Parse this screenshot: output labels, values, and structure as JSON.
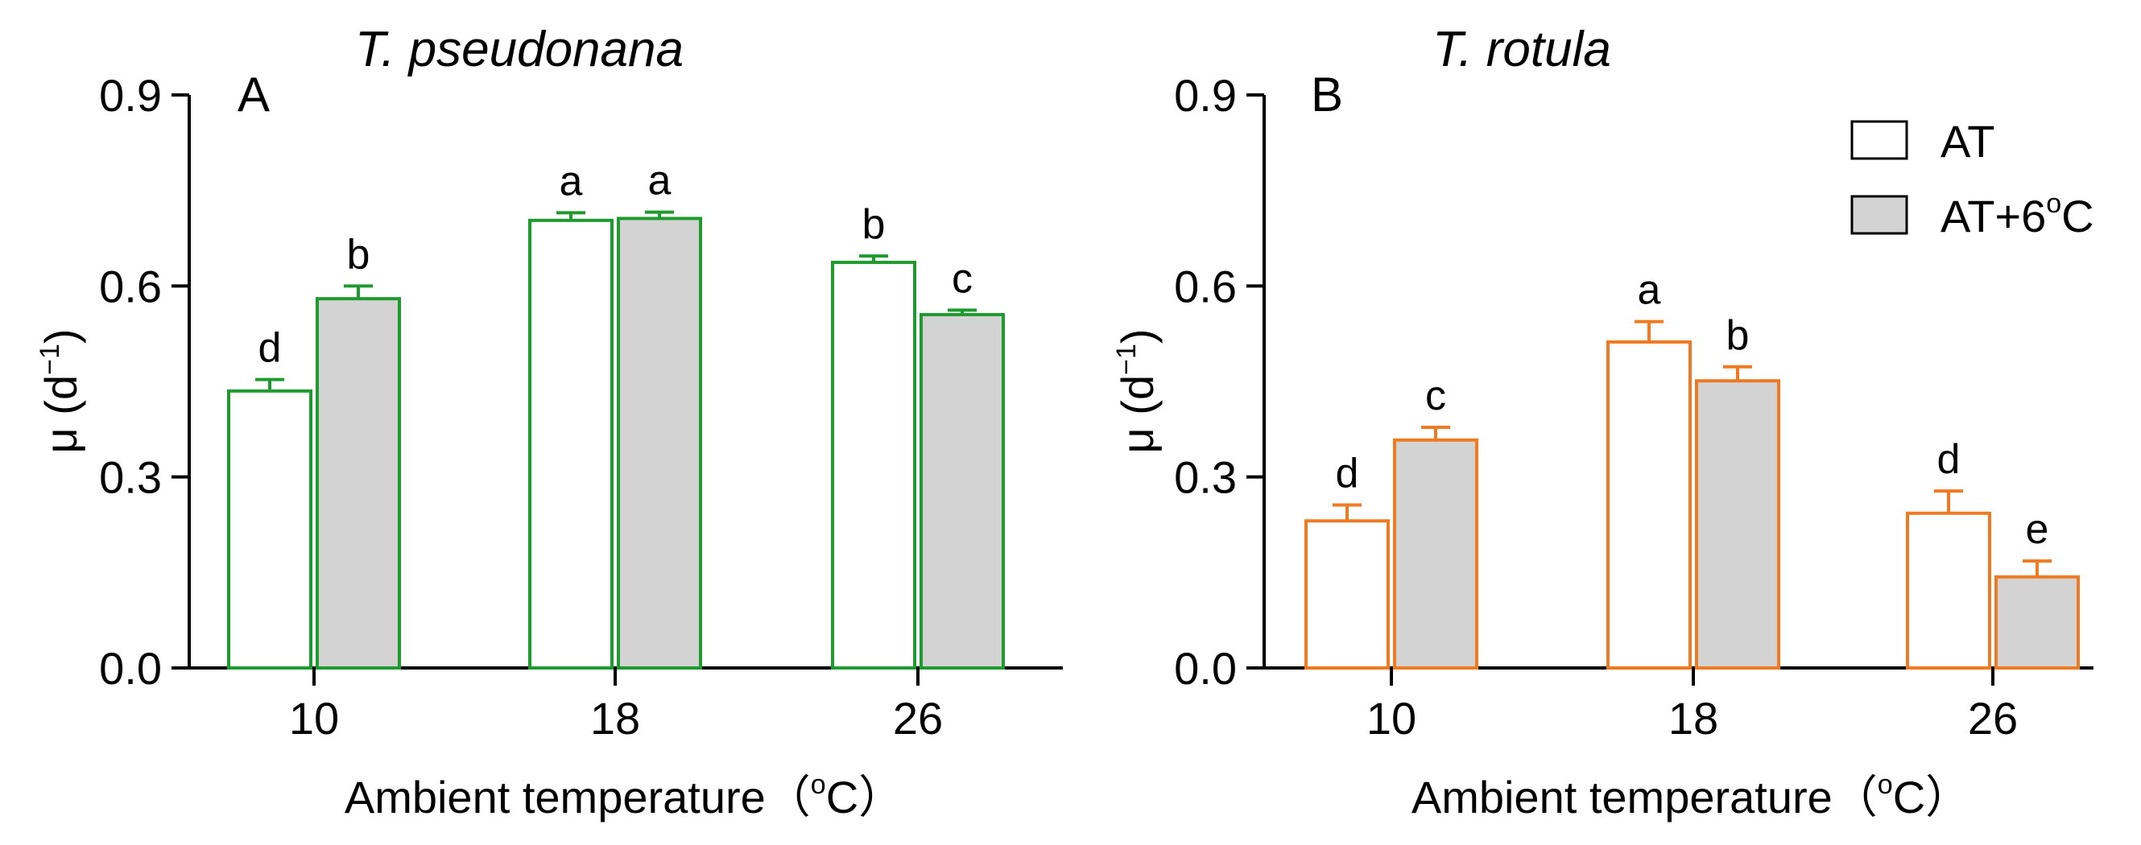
{
  "chart_data": [
    {
      "type": "bar",
      "panel": "A",
      "title": "T. pseudonana",
      "categories": [
        "10",
        "18",
        "26"
      ],
      "series": [
        {
          "name": "AT",
          "values": [
            0.435,
            0.703,
            0.637
          ],
          "errors": [
            0.018,
            0.012,
            0.01
          ],
          "letters": [
            "d",
            "a",
            "b"
          ]
        },
        {
          "name": "AT+6oC",
          "values": [
            0.58,
            0.706,
            0.555
          ],
          "errors": [
            0.02,
            0.01,
            0.007
          ],
          "letters": [
            "b",
            "a",
            "c"
          ]
        }
      ],
      "color": "#1f9a2e",
      "ylabel": "μ (d",
      "ylabel_sup": "−1",
      "ylabel_close": ")",
      "xlabel": "Ambient temperature",
      "xlabel_unit_open": "（",
      "xlabel_unit_sup": "o",
      "xlabel_unit_rest": "C）",
      "ylim": [
        0,
        0.9
      ],
      "yticks": [
        "0.0",
        "0.3",
        "0.6",
        "0.9"
      ]
    },
    {
      "type": "bar",
      "panel": "B",
      "title": "T. rotula",
      "categories": [
        "10",
        "18",
        "26"
      ],
      "series": [
        {
          "name": "AT",
          "values": [
            0.231,
            0.512,
            0.243
          ],
          "errors": [
            0.025,
            0.032,
            0.035
          ],
          "letters": [
            "d",
            "a",
            "d"
          ]
        },
        {
          "name": "AT+6oC",
          "values": [
            0.358,
            0.451,
            0.143
          ],
          "errors": [
            0.02,
            0.022,
            0.025
          ],
          "letters": [
            "c",
            "b",
            "e"
          ]
        }
      ],
      "color": "#f07a22",
      "ylabel": "μ (d",
      "ylabel_sup": "−1",
      "ylabel_close": ")",
      "xlabel": "Ambient temperature",
      "xlabel_unit_open": "（",
      "xlabel_unit_sup": "o",
      "xlabel_unit_rest": "C）",
      "ylim": [
        0,
        0.9
      ],
      "yticks": [
        "0.0",
        "0.3",
        "0.6",
        "0.9"
      ]
    }
  ],
  "legend": {
    "items": [
      {
        "label": "AT",
        "fill": "#ffffff"
      },
      {
        "label_main": "AT+6",
        "label_sup": "o",
        "label_end": "C",
        "fill": "#d3d3d3"
      }
    ]
  },
  "colors": {
    "gray_fill": "#d3d3d3",
    "axis": "#000000"
  }
}
